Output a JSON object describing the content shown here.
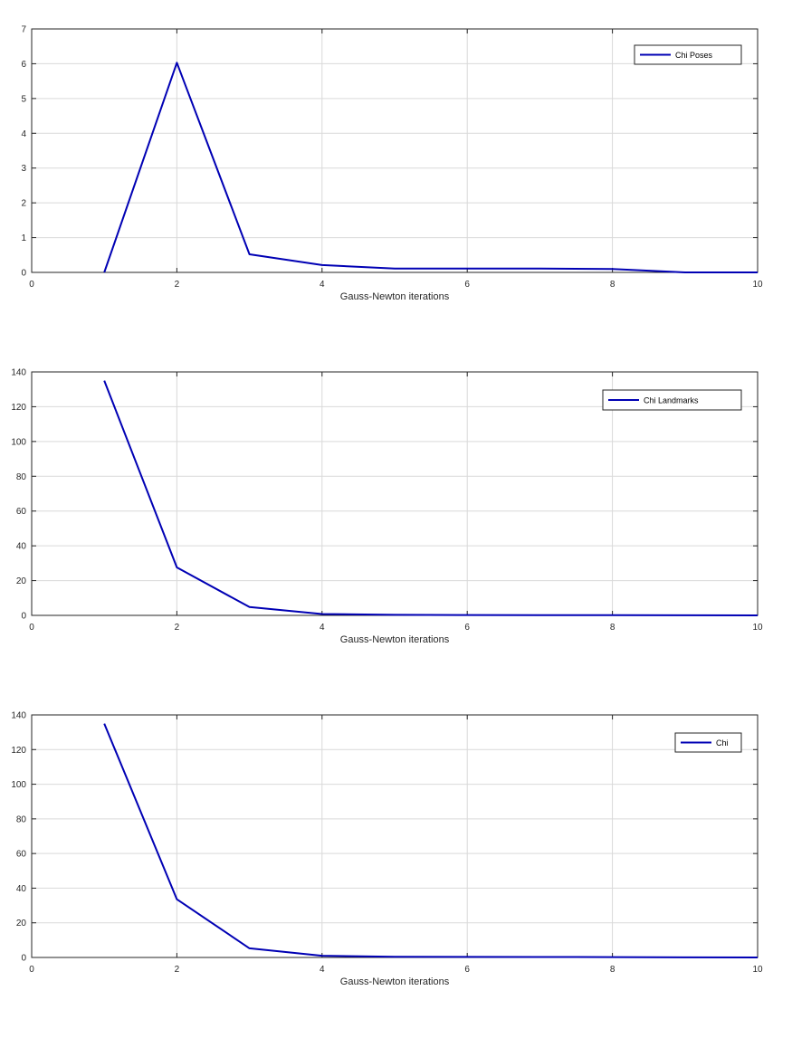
{
  "colors": {
    "line": "#0000b4",
    "grid": "#d9d9d9",
    "axis": "#262626",
    "background": "#ffffff"
  },
  "chart_data": [
    {
      "type": "line",
      "xlabel": "Gauss-Newton iterations",
      "ylabel": "",
      "xlim": [
        0,
        10
      ],
      "ylim": [
        0,
        7
      ],
      "xticks": [
        0,
        2,
        4,
        6,
        8,
        10
      ],
      "yticks": [
        0,
        1,
        2,
        3,
        4,
        5,
        6,
        7
      ],
      "grid": true,
      "legend_position": "top-right",
      "series": [
        {
          "name": "Chi Poses",
          "x": [
            1,
            2,
            3,
            4,
            5,
            6,
            7,
            8,
            9,
            10
          ],
          "y": [
            0,
            6.03,
            0.52,
            0.21,
            0.11,
            0.11,
            0.11,
            0.1,
            0.0,
            0.0
          ]
        }
      ]
    },
    {
      "type": "line",
      "xlabel": "Gauss-Newton iterations",
      "ylabel": "",
      "xlim": [
        0,
        10
      ],
      "ylim": [
        0,
        140
      ],
      "xticks": [
        0,
        2,
        4,
        6,
        8,
        10
      ],
      "yticks": [
        0,
        20,
        40,
        60,
        80,
        100,
        120,
        140
      ],
      "grid": true,
      "legend_position": "top-right",
      "series": [
        {
          "name": "Chi Landmarks",
          "x": [
            1,
            2,
            3,
            4,
            5,
            6,
            7,
            8,
            9,
            10
          ],
          "y": [
            135,
            27.6,
            4.8,
            0.8,
            0.3,
            0.2,
            0.15,
            0.1,
            0.05,
            0.0
          ]
        }
      ]
    },
    {
      "type": "line",
      "xlabel": "Gauss-Newton iterations",
      "ylabel": "",
      "xlim": [
        0,
        10
      ],
      "ylim": [
        0,
        140
      ],
      "xticks": [
        0,
        2,
        4,
        6,
        8,
        10
      ],
      "yticks": [
        0,
        20,
        40,
        60,
        80,
        100,
        120,
        140
      ],
      "grid": true,
      "legend_position": "top-right",
      "series": [
        {
          "name": "Chi",
          "x": [
            1,
            2,
            3,
            4,
            5,
            6,
            7,
            8,
            9,
            10
          ],
          "y": [
            135,
            33.6,
            5.3,
            1.0,
            0.4,
            0.3,
            0.25,
            0.2,
            0.05,
            0.0
          ]
        }
      ]
    }
  ]
}
